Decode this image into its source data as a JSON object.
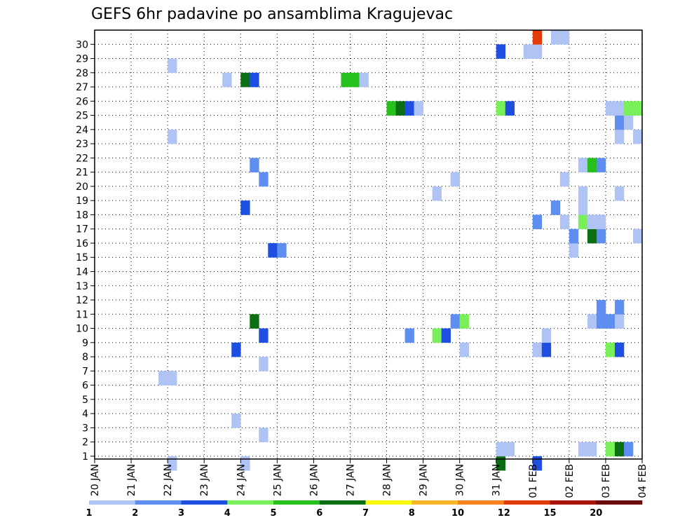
{
  "chart_data": {
    "type": "heatmap",
    "title": "GEFS 6hr padavine po ansamblima Kragujevac",
    "xlabel": "",
    "ylabel": "",
    "x_ticks": [
      "20 JAN",
      "21 JAN",
      "22 JAN",
      "23 JAN",
      "24 JAN",
      "25 JAN",
      "26 JAN",
      "27 JAN",
      "28 JAN",
      "29 JAN",
      "30 JAN",
      "31 JAN",
      "01 FEB",
      "02 FEB",
      "03 FEB",
      "04 FEB"
    ],
    "y_ticks": [
      "1",
      "2",
      "3",
      "4",
      "5",
      "6",
      "7",
      "8",
      "9",
      "10",
      "11",
      "12",
      "13",
      "14",
      "15",
      "16",
      "17",
      "18",
      "19",
      "20",
      "21",
      "22",
      "23",
      "24",
      "25",
      "26",
      "27",
      "28",
      "29",
      "30"
    ],
    "ylim": [
      0,
      30
    ],
    "x_step_hours": 6,
    "grid": true,
    "color_levels": [
      "1",
      "2",
      "3",
      "4",
      "5",
      "6",
      "7",
      "8",
      "10",
      "12",
      "15",
      "20"
    ],
    "level_colors": [
      "#afc3f5",
      "#5e8ef0",
      "#1f4fe0",
      "#79f05a",
      "#27c11e",
      "#0c6e12",
      "#f8f80a",
      "#f8b52a",
      "#f8821e",
      "#e23c0a",
      "#a8140a",
      "#6a0a0a"
    ],
    "cells": [
      {
        "t": 8,
        "m": 0,
        "c": 1
      },
      {
        "t": 16,
        "m": 0,
        "c": 1
      },
      {
        "t": 44,
        "m": 0,
        "c": 6
      },
      {
        "t": 48,
        "m": 0,
        "c": 3
      },
      {
        "t": 44,
        "m": 1,
        "c": 1
      },
      {
        "t": 45,
        "m": 1,
        "c": 1
      },
      {
        "t": 53,
        "m": 1,
        "c": 1
      },
      {
        "t": 54,
        "m": 1,
        "c": 1
      },
      {
        "t": 56,
        "m": 1,
        "c": 4
      },
      {
        "t": 57,
        "m": 1,
        "c": 6
      },
      {
        "t": 58,
        "m": 1,
        "c": 2
      },
      {
        "t": 18,
        "m": 2,
        "c": 1
      },
      {
        "t": 15,
        "m": 3,
        "c": 1
      },
      {
        "t": 7,
        "m": 6,
        "c": 1
      },
      {
        "t": 8,
        "m": 6,
        "c": 1
      },
      {
        "t": 18,
        "m": 7,
        "c": 1
      },
      {
        "t": 15,
        "m": 8,
        "c": 3
      },
      {
        "t": 40,
        "m": 8,
        "c": 1
      },
      {
        "t": 48,
        "m": 8,
        "c": 1
      },
      {
        "t": 49,
        "m": 8,
        "c": 3
      },
      {
        "t": 56,
        "m": 8,
        "c": 4
      },
      {
        "t": 57,
        "m": 8,
        "c": 3
      },
      {
        "t": 18,
        "m": 9,
        "c": 3
      },
      {
        "t": 34,
        "m": 9,
        "c": 2
      },
      {
        "t": 37,
        "m": 9,
        "c": 4
      },
      {
        "t": 38,
        "m": 9,
        "c": 3
      },
      {
        "t": 49,
        "m": 9,
        "c": 1
      },
      {
        "t": 17,
        "m": 10,
        "c": 6
      },
      {
        "t": 39,
        "m": 10,
        "c": 2
      },
      {
        "t": 40,
        "m": 10,
        "c": 4
      },
      {
        "t": 54,
        "m": 10,
        "c": 1
      },
      {
        "t": 55,
        "m": 10,
        "c": 2
      },
      {
        "t": 56,
        "m": 10,
        "c": 2
      },
      {
        "t": 57,
        "m": 10,
        "c": 1
      },
      {
        "t": 55,
        "m": 11,
        "c": 2
      },
      {
        "t": 57,
        "m": 11,
        "c": 2
      },
      {
        "t": 19,
        "m": 15,
        "c": 3
      },
      {
        "t": 20,
        "m": 15,
        "c": 2
      },
      {
        "t": 52,
        "m": 15,
        "c": 1
      },
      {
        "t": 52,
        "m": 16,
        "c": 2
      },
      {
        "t": 54,
        "m": 16,
        "c": 6
      },
      {
        "t": 55,
        "m": 16,
        "c": 2
      },
      {
        "t": 59,
        "m": 16,
        "c": 1
      },
      {
        "t": 48,
        "m": 17,
        "c": 2
      },
      {
        "t": 51,
        "m": 17,
        "c": 1
      },
      {
        "t": 53,
        "m": 17,
        "c": 4
      },
      {
        "t": 54,
        "m": 17,
        "c": 1
      },
      {
        "t": 55,
        "m": 17,
        "c": 1
      },
      {
        "t": 16,
        "m": 18,
        "c": 3
      },
      {
        "t": 50,
        "m": 18,
        "c": 2
      },
      {
        "t": 53,
        "m": 18,
        "c": 1
      },
      {
        "t": 37,
        "m": 19,
        "c": 1
      },
      {
        "t": 53,
        "m": 19,
        "c": 1
      },
      {
        "t": 57,
        "m": 19,
        "c": 1
      },
      {
        "t": 18,
        "m": 20,
        "c": 2
      },
      {
        "t": 39,
        "m": 20,
        "c": 1
      },
      {
        "t": 51,
        "m": 20,
        "c": 1
      },
      {
        "t": 17,
        "m": 21,
        "c": 2
      },
      {
        "t": 53,
        "m": 21,
        "c": 1
      },
      {
        "t": 54,
        "m": 21,
        "c": 5
      },
      {
        "t": 55,
        "m": 21,
        "c": 2
      },
      {
        "t": 8,
        "m": 23,
        "c": 1
      },
      {
        "t": 57,
        "m": 23,
        "c": 1
      },
      {
        "t": 59,
        "m": 23,
        "c": 1
      },
      {
        "t": 57,
        "m": 24,
        "c": 2
      },
      {
        "t": 58,
        "m": 24,
        "c": 1
      },
      {
        "t": 32,
        "m": 25,
        "c": 5
      },
      {
        "t": 33,
        "m": 25,
        "c": 6
      },
      {
        "t": 34,
        "m": 25,
        "c": 3
      },
      {
        "t": 35,
        "m": 25,
        "c": 1
      },
      {
        "t": 44,
        "m": 25,
        "c": 4
      },
      {
        "t": 45,
        "m": 25,
        "c": 3
      },
      {
        "t": 56,
        "m": 25,
        "c": 1
      },
      {
        "t": 57,
        "m": 25,
        "c": 1
      },
      {
        "t": 58,
        "m": 25,
        "c": 4
      },
      {
        "t": 59,
        "m": 25,
        "c": 4
      },
      {
        "t": 14,
        "m": 27,
        "c": 1
      },
      {
        "t": 16,
        "m": 27,
        "c": 6
      },
      {
        "t": 17,
        "m": 27,
        "c": 3
      },
      {
        "t": 27,
        "m": 27,
        "c": 5
      },
      {
        "t": 28,
        "m": 27,
        "c": 5
      },
      {
        "t": 29,
        "m": 27,
        "c": 1
      },
      {
        "t": 8,
        "m": 28,
        "c": 1
      },
      {
        "t": 44,
        "m": 29,
        "c": 3
      },
      {
        "t": 47,
        "m": 29,
        "c": 1
      },
      {
        "t": 48,
        "m": 29,
        "c": 1
      },
      {
        "t": 48,
        "m": 30,
        "c": 10
      },
      {
        "t": 50,
        "m": 30,
        "c": 1
      },
      {
        "t": 51,
        "m": 30,
        "c": 1
      }
    ]
  }
}
